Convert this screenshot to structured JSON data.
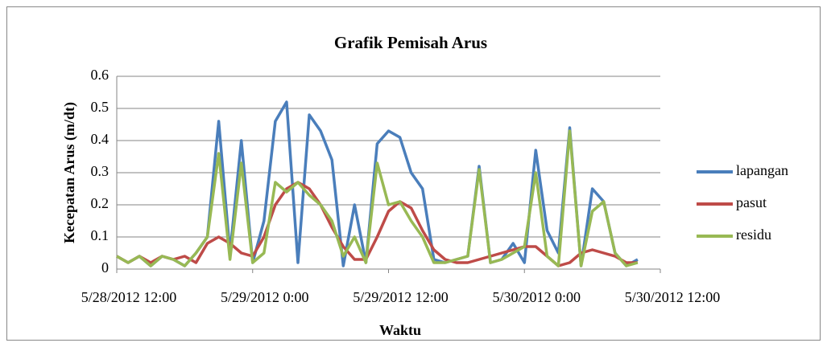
{
  "chart_data": {
    "type": "line",
    "title": "Grafik Pemisah Arus",
    "x_label": "Waktu",
    "y_label": "Kecepatan Arus (m/dt)",
    "x": [
      "5/28/2012 12:00",
      "5/28/2012 13:00",
      "5/28/2012 14:00",
      "5/28/2012 15:00",
      "5/28/2012 16:00",
      "5/28/2012 17:00",
      "5/28/2012 18:00",
      "5/28/2012 19:00",
      "5/28/2012 20:00",
      "5/28/2012 21:00",
      "5/28/2012 22:00",
      "5/28/2012 23:00",
      "5/29/2012 0:00",
      "5/29/2012 1:00",
      "5/29/2012 2:00",
      "5/29/2012 3:00",
      "5/29/2012 4:00",
      "5/29/2012 5:00",
      "5/29/2012 6:00",
      "5/29/2012 7:00",
      "5/29/2012 8:00",
      "5/29/2012 9:00",
      "5/29/2012 10:00",
      "5/29/2012 11:00",
      "5/29/2012 12:00",
      "5/29/2012 13:00",
      "5/29/2012 14:00",
      "5/29/2012 15:00",
      "5/29/2012 16:00",
      "5/29/2012 17:00",
      "5/29/2012 18:00",
      "5/29/2012 19:00",
      "5/29/2012 20:00",
      "5/29/2012 21:00",
      "5/29/2012 22:00",
      "5/29/2012 23:00",
      "5/30/2012 0:00",
      "5/30/2012 1:00",
      "5/30/2012 2:00",
      "5/30/2012 3:00",
      "5/30/2012 4:00",
      "5/30/2012 5:00",
      "5/30/2012 6:00",
      "5/30/2012 7:00",
      "5/30/2012 8:00",
      "5/30/2012 9:00",
      "5/30/2012 10:00"
    ],
    "series": [
      {
        "name": "lapangan",
        "color": "#4a7ebb",
        "values": [
          0.04,
          0.02,
          0.04,
          0.01,
          0.04,
          0.03,
          0.01,
          0.05,
          0.1,
          0.46,
          0.05,
          0.4,
          0.02,
          0.15,
          0.46,
          0.52,
          0.02,
          0.48,
          0.43,
          0.34,
          0.01,
          0.2,
          0.02,
          0.39,
          0.43,
          0.41,
          0.3,
          0.25,
          0.03,
          0.02,
          0.03,
          0.04,
          0.32,
          0.02,
          0.03,
          0.08,
          0.02,
          0.37,
          0.12,
          0.05,
          0.44,
          0.01,
          0.25,
          0.21,
          0.05,
          0.01,
          0.03
        ]
      },
      {
        "name": "pasut",
        "color": "#be4b48",
        "values": [
          0.04,
          0.02,
          0.04,
          0.02,
          0.04,
          0.03,
          0.04,
          0.02,
          0.08,
          0.1,
          0.08,
          0.05,
          0.04,
          0.1,
          0.2,
          0.25,
          0.27,
          0.25,
          0.2,
          0.13,
          0.07,
          0.03,
          0.03,
          0.1,
          0.18,
          0.21,
          0.19,
          0.12,
          0.06,
          0.03,
          0.02,
          0.02,
          0.03,
          0.04,
          0.05,
          0.06,
          0.07,
          0.07,
          0.04,
          0.01,
          0.02,
          0.05,
          0.06,
          0.05,
          0.04,
          0.02,
          0.02
        ]
      },
      {
        "name": "residu",
        "color": "#98b954",
        "values": [
          0.04,
          0.02,
          0.04,
          0.01,
          0.04,
          0.03,
          0.01,
          0.05,
          0.1,
          0.36,
          0.03,
          0.33,
          0.02,
          0.05,
          0.27,
          0.24,
          0.27,
          0.23,
          0.2,
          0.15,
          0.04,
          0.1,
          0.02,
          0.33,
          0.2,
          0.21,
          0.15,
          0.1,
          0.02,
          0.02,
          0.03,
          0.04,
          0.31,
          0.02,
          0.03,
          0.05,
          0.07,
          0.3,
          0.04,
          0.01,
          0.43,
          0.01,
          0.18,
          0.21,
          0.05,
          0.01,
          0.02
        ]
      }
    ],
    "xlim": [
      "5/28/2012 12:00",
      "5/30/2012 12:00"
    ],
    "xticks": [
      "5/28/2012 12:00",
      "5/29/2012 0:00",
      "5/29/2012 12:00",
      "5/30/2012 0:00",
      "5/30/2012 12:00"
    ],
    "ylim": [
      0,
      0.6
    ],
    "yticks": [
      0,
      0.1,
      0.2,
      0.3,
      0.4,
      0.5,
      0.6
    ],
    "grid": true,
    "legend": "right"
  }
}
